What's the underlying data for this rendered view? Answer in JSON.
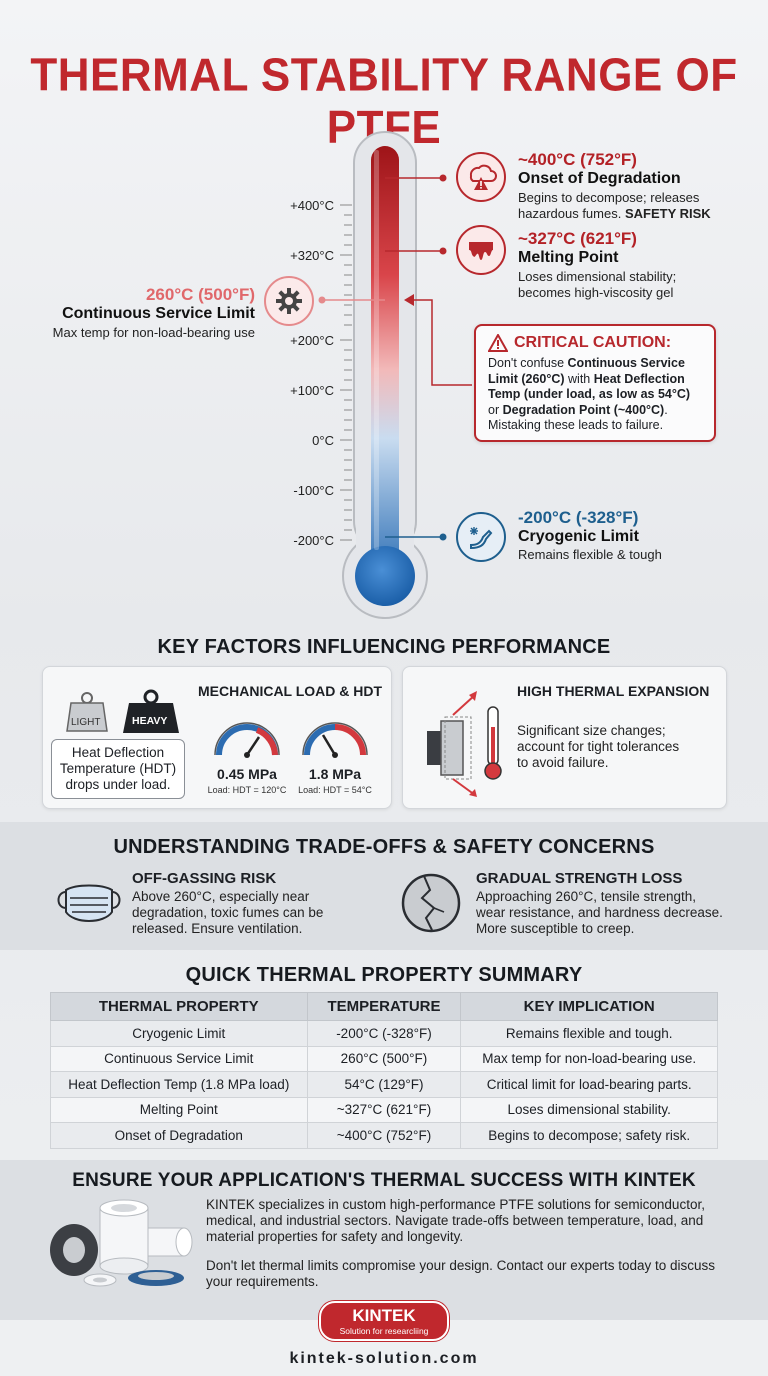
{
  "title": "THERMAL STABILITY RANGE OF PTFE",
  "scale": {
    "labels": [
      "+400°C",
      "+320°C",
      "+200°C",
      "+100°C",
      "0°C",
      "-100°C",
      "-200°C"
    ]
  },
  "callouts": {
    "degradation": {
      "temp": "~400°C (752°F)",
      "name": "Onset of Degradation",
      "desc": "Begins to decompose; releases hazardous fumes.",
      "risk": "SAFETY RISK",
      "icon": "fire-hazard-icon"
    },
    "melting": {
      "temp": "~327°C (621°F)",
      "name": "Melting Point",
      "desc1": "Loses dimensional stability;",
      "desc2": "becomes high-viscosity gel",
      "icon": "melting-icon"
    },
    "service": {
      "temp": "260°C (500°F)",
      "name": "Continuous Service Limit",
      "desc": "Max temp for non-load-bearing use",
      "icon": "gear-icon"
    },
    "cryogenic": {
      "temp": "-200°C (-328°F)",
      "name": "Cryogenic Limit",
      "desc": "Remains flexible & tough",
      "icon": "snowflake-icon"
    }
  },
  "caution": {
    "title": "CRITICAL CAUTION:",
    "l1a": "Don't confuse ",
    "l1b": "Continuous Service",
    "l2a": "Limit (260°C)",
    "l2b": " with ",
    "l2c": "Heat Deflection",
    "l3": "Temp (under load, as low as 54°C)",
    "l4a": "or ",
    "l4b": "Degradation Point (~400°C)",
    "l4c": ".",
    "l5": "Mistaking these leads to failure."
  },
  "factors": {
    "heading": "KEY FACTORS INFLUENCING PERFORMANCE",
    "load": {
      "title": "MECHANICAL LOAD & HDT",
      "light": "LIGHT",
      "heavy": "HEAVY",
      "box1": "Heat Deflection",
      "box2": "Temperature (HDT)",
      "box3": "drops under load.",
      "gauge1_value": "0.45 MPa",
      "gauge1_note": "Load: HDT = 120°C",
      "gauge2_value": "1.8 MPa",
      "gauge2_note": "Load: HDT = 54°C"
    },
    "expansion": {
      "title": "HIGH THERMAL EXPANSION",
      "d1": "Significant size changes;",
      "d2": "account for tight tolerances",
      "d3": "to avoid failure."
    }
  },
  "tradeoffs": {
    "heading": "UNDERSTANDING TRADE-OFFS & SAFETY CONCERNS",
    "offgas": {
      "title": "OFF-GASSING RISK",
      "d1": "Above 260°C, especially near",
      "d2": "degradation, toxic fumes can be",
      "d3": "released. Ensure ventilation."
    },
    "strength": {
      "title": "GRADUAL STRENGTH LOSS",
      "d1": "Approaching 260°C, tensile strength,",
      "d2": "wear resistance, and hardness decrease.",
      "d3": "More susceptible to creep."
    }
  },
  "summary": {
    "heading": "QUICK THERMAL PROPERTY SUMMARY",
    "headers": [
      "THERMAL PROPERTY",
      "TEMPERATURE",
      "KEY IMPLICATION"
    ],
    "rows": [
      [
        "Cryogenic Limit",
        "-200°C (-328°F)",
        "Remains flexible and tough."
      ],
      [
        "Continuous Service Limit",
        "260°C (500°F)",
        "Max temp for non-load-bearing use."
      ],
      [
        "Heat Deflection Temp (1.8 MPa load)",
        "54°C (129°F)",
        "Critical limit for load-bearing parts."
      ],
      [
        "Melting Point",
        "~327°C (621°F)",
        "Loses dimensional stability."
      ],
      [
        "Onset of Degradation",
        "~400°C (752°F)",
        "Begins to decompose; safety risk."
      ]
    ]
  },
  "cta": {
    "heading": "ENSURE YOUR APPLICATION'S THERMAL SUCCESS WITH KINTEK",
    "p1a": "KINTEK specializes in custom high-performance PTFE solutions for semiconductor,",
    "p1b": "medical, and industrial sectors. Navigate trade-offs between temperature, load, and",
    "p1c": "material properties for safety and longevity.",
    "p2a": "Don't let thermal limits compromise your design. Contact our experts today to discuss",
    "p2b": "your requirements."
  },
  "brand": {
    "name": "KINTEK",
    "tagline": "Solution for researcliing",
    "url": "kintek-solution.com"
  },
  "colors": {
    "accent_red": "#c0282d",
    "accent_blue": "#1e5f8e"
  }
}
